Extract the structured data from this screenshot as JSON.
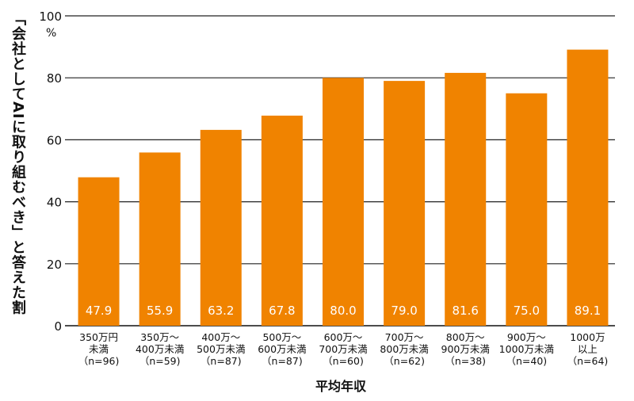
{
  "chart_data": {
    "type": "bar",
    "categories": [
      [
        "350万円",
        "未満",
        "（n=96)"
      ],
      [
        "350万〜",
        "400万未満",
        "（n=59)"
      ],
      [
        "400万〜",
        "500万未満",
        "（n=87)"
      ],
      [
        "500万〜",
        "600万未満",
        "（n=87)"
      ],
      [
        "600万〜",
        "700万未満",
        "（n=60)"
      ],
      [
        "700万〜",
        "800万未満",
        "（n=62)"
      ],
      [
        "800万〜",
        "900万未満",
        "（n=38)"
      ],
      [
        "900万〜",
        "1000万未満",
        "（n=40)"
      ],
      [
        "1000万",
        "以上",
        "（n=64)"
      ]
    ],
    "values": [
      47.9,
      55.9,
      63.2,
      67.8,
      80.0,
      79.0,
      81.6,
      75.0,
      89.1
    ],
    "value_labels": [
      "47.9",
      "55.9",
      "63.2",
      "67.8",
      "80.0",
      "79.0",
      "81.6",
      "75.0",
      "89.1"
    ],
    "ylabel": "「会社としてAIに取り組むべき」と答えた割合",
    "xlabel": "平均年収",
    "unit": "%",
    "yticks": [
      "0",
      "20",
      "40",
      "60",
      "80",
      "100"
    ],
    "ylim": [
      0,
      100
    ],
    "grid": true,
    "bar_color": "#F08300",
    "grid_color": "#222222"
  }
}
